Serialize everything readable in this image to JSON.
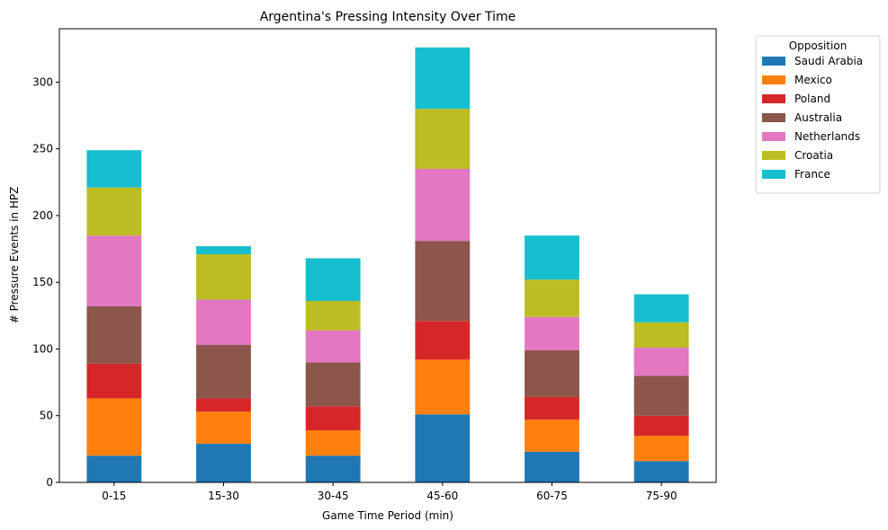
{
  "chart_data": {
    "type": "bar",
    "stacked": true,
    "title": "Argentina's Pressing Intensity Over Time",
    "xlabel": "Game Time Period (min)",
    "ylabel": "# Pressure Events in HPZ",
    "categories": [
      "0-15",
      "15-30",
      "30-45",
      "45-60",
      "60-75",
      "75-90"
    ],
    "ylim": [
      0,
      340
    ],
    "yticks": [
      0,
      50,
      100,
      150,
      200,
      250,
      300
    ],
    "legend": {
      "title": "Opposition",
      "placement": "outside-top-right"
    },
    "series": [
      {
        "name": "Saudi Arabia",
        "color": "#1f77b4",
        "values": [
          20,
          29,
          20,
          51,
          23,
          16
        ]
      },
      {
        "name": "Mexico",
        "color": "#ff7f0e",
        "values": [
          43,
          24,
          19,
          41,
          24,
          19
        ]
      },
      {
        "name": "Poland",
        "color": "#d62728",
        "values": [
          26,
          10,
          18,
          29,
          17,
          15
        ]
      },
      {
        "name": "Australia",
        "color": "#8c564b",
        "values": [
          43,
          40,
          33,
          60,
          35,
          30
        ]
      },
      {
        "name": "Netherlands",
        "color": "#e377c2",
        "values": [
          53,
          34,
          24,
          54,
          25,
          21
        ]
      },
      {
        "name": "Croatia",
        "color": "#bcbd22",
        "values": [
          36,
          34,
          22,
          45,
          28,
          19
        ]
      },
      {
        "name": "France",
        "color": "#17becf",
        "values": [
          28,
          6,
          32,
          46,
          33,
          21
        ]
      }
    ]
  }
}
